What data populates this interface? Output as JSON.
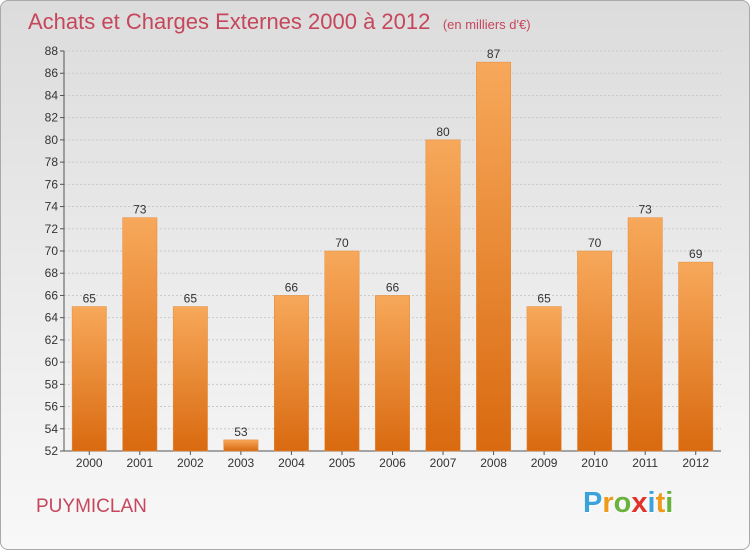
{
  "header": {
    "title": "Achats et Charges Externes 2000 à 2012",
    "unit": "(en milliers d'€)"
  },
  "footer": {
    "place": "PUYMICLAN",
    "logo_letters": [
      "P",
      "r",
      "o",
      "x",
      "i",
      "t",
      "i"
    ],
    "logo_colors": [
      "#3aa3dc",
      "#f09a1c",
      "#6ab23e",
      "#e0342b",
      "#3aa3dc",
      "#f09a1c",
      "#6ab23e"
    ]
  },
  "chart_data": {
    "type": "bar",
    "title": "Achats et Charges Externes 2000 à 2012",
    "subtitle": "(en milliers d'€)",
    "categories": [
      "2000",
      "2001",
      "2002",
      "2003",
      "2004",
      "2005",
      "2006",
      "2007",
      "2008",
      "2009",
      "2010",
      "2011",
      "2012"
    ],
    "values": [
      65,
      73,
      65,
      53,
      66,
      70,
      66,
      80,
      87,
      65,
      70,
      73,
      69
    ],
    "ylim": [
      52,
      88
    ],
    "yticks": [
      52,
      54,
      56,
      58,
      60,
      62,
      64,
      66,
      68,
      70,
      72,
      74,
      76,
      78,
      80,
      82,
      84,
      86,
      88
    ],
    "grid": true,
    "bar_color": "#f08a26"
  }
}
